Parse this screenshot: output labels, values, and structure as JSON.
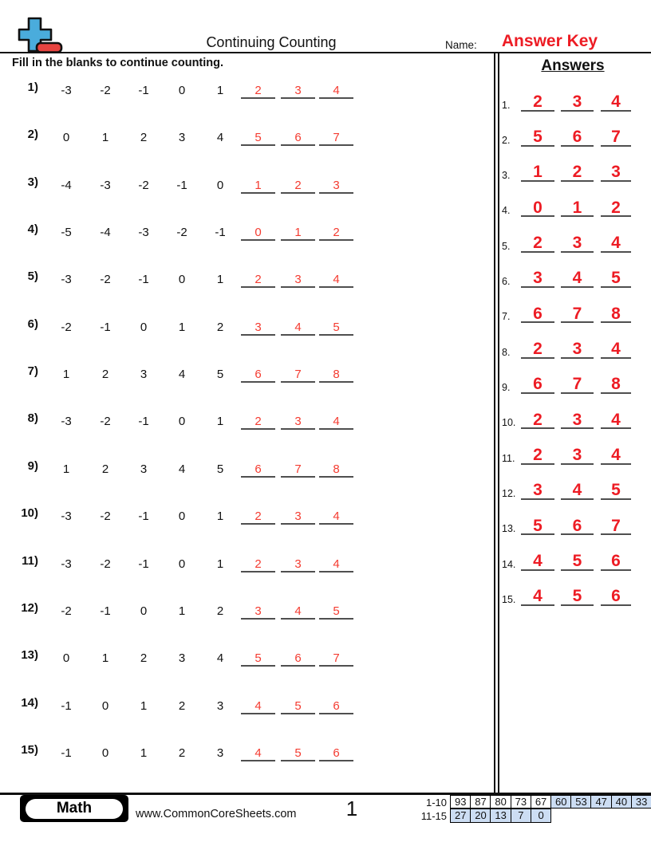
{
  "header": {
    "title": "Continuing Counting",
    "name_label": "Name:",
    "name_value": "Answer Key",
    "instruction": "Fill in the blanks to continue counting.",
    "answers_title": "Answers",
    "logo_icon": "plus-minus-logo"
  },
  "colors": {
    "answer_key_red": "#ed1c24",
    "problem_answer_red": "#f43b30",
    "blank_line_gray": "#4f4f4f",
    "score_cell_blue": "#ccddf3",
    "logo_blue": "#4aacdc",
    "logo_red": "#e84440"
  },
  "problems": [
    {
      "label": "1)",
      "terms": [
        "-3",
        "-2",
        "-1",
        "0",
        "1"
      ],
      "answers": [
        "2",
        "3",
        "4"
      ]
    },
    {
      "label": "2)",
      "terms": [
        "0",
        "1",
        "2",
        "3",
        "4"
      ],
      "answers": [
        "5",
        "6",
        "7"
      ]
    },
    {
      "label": "3)",
      "terms": [
        "-4",
        "-3",
        "-2",
        "-1",
        "0"
      ],
      "answers": [
        "1",
        "2",
        "3"
      ]
    },
    {
      "label": "4)",
      "terms": [
        "-5",
        "-4",
        "-3",
        "-2",
        "-1"
      ],
      "answers": [
        "0",
        "1",
        "2"
      ]
    },
    {
      "label": "5)",
      "terms": [
        "-3",
        "-2",
        "-1",
        "0",
        "1"
      ],
      "answers": [
        "2",
        "3",
        "4"
      ]
    },
    {
      "label": "6)",
      "terms": [
        "-2",
        "-1",
        "0",
        "1",
        "2"
      ],
      "answers": [
        "3",
        "4",
        "5"
      ]
    },
    {
      "label": "7)",
      "terms": [
        "1",
        "2",
        "3",
        "4",
        "5"
      ],
      "answers": [
        "6",
        "7",
        "8"
      ]
    },
    {
      "label": "8)",
      "terms": [
        "-3",
        "-2",
        "-1",
        "0",
        "1"
      ],
      "answers": [
        "2",
        "3",
        "4"
      ]
    },
    {
      "label": "9)",
      "terms": [
        "1",
        "2",
        "3",
        "4",
        "5"
      ],
      "answers": [
        "6",
        "7",
        "8"
      ]
    },
    {
      "label": "10)",
      "terms": [
        "-3",
        "-2",
        "-1",
        "0",
        "1"
      ],
      "answers": [
        "2",
        "3",
        "4"
      ]
    },
    {
      "label": "11)",
      "terms": [
        "-3",
        "-2",
        "-1",
        "0",
        "1"
      ],
      "answers": [
        "2",
        "3",
        "4"
      ]
    },
    {
      "label": "12)",
      "terms": [
        "-2",
        "-1",
        "0",
        "1",
        "2"
      ],
      "answers": [
        "3",
        "4",
        "5"
      ]
    },
    {
      "label": "13)",
      "terms": [
        "0",
        "1",
        "2",
        "3",
        "4"
      ],
      "answers": [
        "5",
        "6",
        "7"
      ]
    },
    {
      "label": "14)",
      "terms": [
        "-1",
        "0",
        "1",
        "2",
        "3"
      ],
      "answers": [
        "4",
        "5",
        "6"
      ]
    },
    {
      "label": "15)",
      "terms": [
        "-1",
        "0",
        "1",
        "2",
        "3"
      ],
      "answers": [
        "4",
        "5",
        "6"
      ]
    }
  ],
  "answer_key": [
    {
      "label": "1.",
      "values": [
        "2",
        "3",
        "4"
      ]
    },
    {
      "label": "2.",
      "values": [
        "5",
        "6",
        "7"
      ]
    },
    {
      "label": "3.",
      "values": [
        "1",
        "2",
        "3"
      ]
    },
    {
      "label": "4.",
      "values": [
        "0",
        "1",
        "2"
      ]
    },
    {
      "label": "5.",
      "values": [
        "2",
        "3",
        "4"
      ]
    },
    {
      "label": "6.",
      "values": [
        "3",
        "4",
        "5"
      ]
    },
    {
      "label": "7.",
      "values": [
        "6",
        "7",
        "8"
      ]
    },
    {
      "label": "8.",
      "values": [
        "2",
        "3",
        "4"
      ]
    },
    {
      "label": "9.",
      "values": [
        "6",
        "7",
        "8"
      ]
    },
    {
      "label": "10.",
      "values": [
        "2",
        "3",
        "4"
      ]
    },
    {
      "label": "11.",
      "values": [
        "2",
        "3",
        "4"
      ]
    },
    {
      "label": "12.",
      "values": [
        "3",
        "4",
        "5"
      ]
    },
    {
      "label": "13.",
      "values": [
        "5",
        "6",
        "7"
      ]
    },
    {
      "label": "14.",
      "values": [
        "4",
        "5",
        "6"
      ]
    },
    {
      "label": "15.",
      "values": [
        "4",
        "5",
        "6"
      ]
    }
  ],
  "footer": {
    "subject_badge": "Math",
    "website": "www.CommonCoreSheets.com",
    "page_number": "1",
    "score_table": {
      "rows": [
        {
          "label": "1-10",
          "values": [
            "93",
            "87",
            "80",
            "73",
            "67",
            "60",
            "53",
            "47",
            "40",
            "33"
          ],
          "shaded_from": 5
        },
        {
          "label": "11-15",
          "values": [
            "27",
            "20",
            "13",
            "7",
            "0"
          ],
          "shaded_from": 0
        }
      ]
    }
  }
}
